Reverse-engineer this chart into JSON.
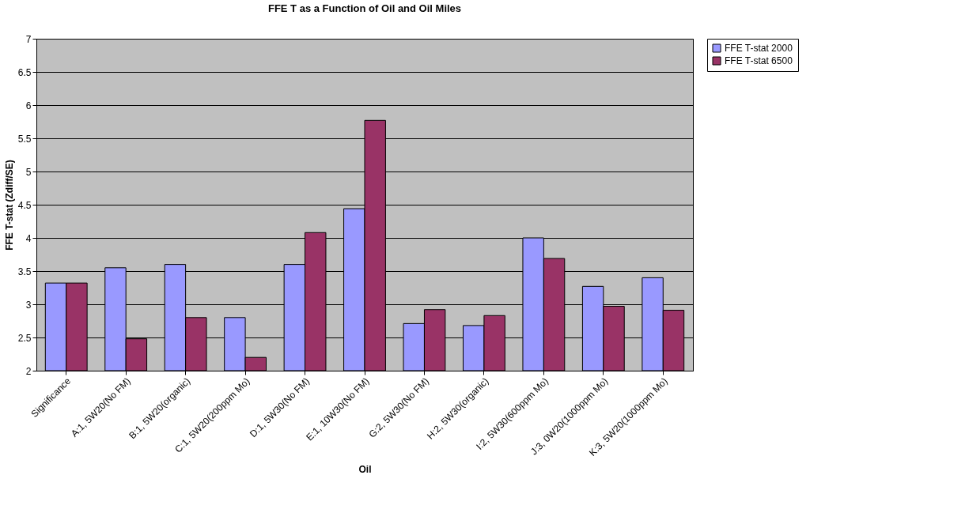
{
  "chart_data": {
    "type": "bar",
    "title": "FFE T as a Function of Oil and Oil Miles",
    "xlabel": "Oil",
    "ylabel": "FFE T-stat (Zdiff/SE)",
    "categories": [
      "Significance",
      "A:1, 5W20(No FM)",
      "B:1, 5W20(organic)",
      "C:1, 5W20(200ppm Mo)",
      "D:1, 5W30(No FM)",
      "E:1, 10W30(No FM)",
      "G:2, 5W30(No FM)",
      "H:2, 5W30(organic)",
      "I:2, 5W30(600ppm Mo)",
      "J:3, 0W20(1000ppm Mo)",
      "K:3, 5W20(1000ppm Mo)"
    ],
    "series": [
      {
        "name": "FFE T-stat 2000",
        "color": "#9999ff",
        "values": [
          3.32,
          3.55,
          3.6,
          2.8,
          3.6,
          4.44,
          2.71,
          2.68,
          4.0,
          3.27,
          3.4
        ]
      },
      {
        "name": "FFE T-stat 6500",
        "color": "#993366",
        "values": [
          3.32,
          2.48,
          2.8,
          2.2,
          4.08,
          5.77,
          2.92,
          2.83,
          3.69,
          2.97,
          2.91
        ]
      }
    ],
    "ylim": [
      2,
      7
    ],
    "yticks": [
      2,
      2.5,
      3,
      3.5,
      4,
      4.5,
      5,
      5.5,
      6,
      6.5,
      7
    ],
    "grid": "y",
    "legend": "right"
  }
}
